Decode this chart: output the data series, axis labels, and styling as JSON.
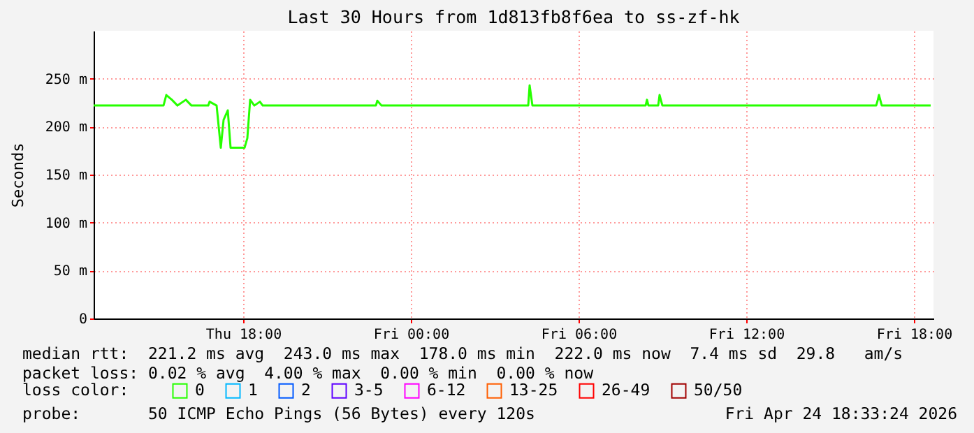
{
  "chart_data": {
    "type": "line",
    "title": "Last 30 Hours from 1d813fb8f6ea to ss-zf-hk",
    "ylabel": "Seconds",
    "x": [
      "2026-04-23T12:39",
      "2026-04-23T15:09",
      "2026-04-23T15:15",
      "2026-04-23T15:27",
      "2026-04-23T15:39",
      "2026-04-23T15:57",
      "2026-04-23T16:09",
      "2026-04-23T16:45",
      "2026-04-23T16:48",
      "2026-04-23T17:03",
      "2026-04-23T17:12",
      "2026-04-23T17:18",
      "2026-04-23T17:27",
      "2026-04-23T17:33",
      "2026-04-23T18:03",
      "2026-04-23T18:09",
      "2026-04-23T18:15",
      "2026-04-23T18:24",
      "2026-04-23T18:36",
      "2026-04-23T18:42",
      "2026-04-23T22:45",
      "2026-04-23T22:48",
      "2026-04-23T22:57",
      "2026-04-24T04:12",
      "2026-04-24T04:15",
      "2026-04-24T04:21",
      "2026-04-24T08:24",
      "2026-04-24T08:27",
      "2026-04-24T08:30",
      "2026-04-24T08:51",
      "2026-04-24T08:54",
      "2026-04-24T09:00",
      "2026-04-24T16:39",
      "2026-04-24T16:42",
      "2026-04-24T16:45",
      "2026-04-24T16:51",
      "2026-04-24T18:36"
    ],
    "series": [
      {
        "name": "0",
        "color": "#26ff00",
        "values": [
          222,
          222,
          233,
          228,
          222,
          228,
          222,
          222,
          226,
          222,
          178,
          207,
          217,
          178,
          178,
          188,
          228,
          222,
          226,
          222,
          222,
          227,
          222,
          222,
          243,
          222,
          222,
          228,
          222,
          222,
          233,
          222,
          222,
          227,
          233,
          222,
          222
        ]
      },
      {
        "name": "1",
        "color": "#00b8ff",
        "values": [
          null,
          null,
          null,
          null,
          null,
          null,
          null,
          null,
          null,
          null,
          null,
          null,
          null,
          null,
          null,
          null,
          null,
          null,
          null,
          null,
          null,
          null,
          null,
          null,
          null,
          null,
          null,
          null,
          null,
          null,
          null,
          null,
          null,
          null,
          null,
          null,
          null
        ]
      },
      {
        "name": "2",
        "color": "#0059ff",
        "values": [
          null,
          null,
          null,
          null,
          null,
          null,
          null,
          null,
          null,
          null,
          null,
          null,
          null,
          null,
          null,
          null,
          null,
          null,
          null,
          null,
          null,
          null,
          null,
          null,
          null,
          null,
          null,
          null,
          null,
          null,
          null,
          null,
          null,
          null,
          null,
          null,
          null
        ]
      },
      {
        "name": "3-5",
        "color": "#5e00ff",
        "values": [
          null,
          null,
          null,
          null,
          null,
          null,
          null,
          null,
          null,
          null,
          null,
          null,
          null,
          null,
          null,
          null,
          null,
          null,
          null,
          null,
          null,
          null,
          null,
          null,
          null,
          null,
          null,
          null,
          null,
          null,
          null,
          null,
          null,
          null,
          null,
          null,
          null
        ]
      },
      {
        "name": "6-12",
        "color": "#ff00ff",
        "values": [
          null,
          null,
          null,
          null,
          null,
          null,
          null,
          null,
          null,
          null,
          null,
          null,
          null,
          null,
          null,
          null,
          null,
          null,
          null,
          null,
          null,
          null,
          null,
          null,
          null,
          null,
          null,
          null,
          null,
          null,
          null,
          null,
          null,
          null,
          null,
          null,
          null
        ]
      },
      {
        "name": "13-25",
        "color": "#ff5e00",
        "values": [
          null,
          null,
          null,
          null,
          null,
          null,
          null,
          null,
          null,
          null,
          null,
          null,
          null,
          null,
          null,
          null,
          null,
          null,
          null,
          null,
          null,
          null,
          null,
          null,
          null,
          null,
          null,
          null,
          null,
          null,
          null,
          null,
          null,
          null,
          null,
          null,
          null
        ]
      },
      {
        "name": "26-49",
        "color": "#ff0000",
        "values": [
          null,
          null,
          null,
          null,
          null,
          null,
          null,
          null,
          null,
          null,
          null,
          null,
          null,
          null,
          null,
          null,
          null,
          null,
          null,
          null,
          null,
          null,
          null,
          null,
          null,
          null,
          null,
          null,
          null,
          null,
          null,
          null,
          null,
          null,
          null,
          null,
          null
        ]
      },
      {
        "name": "50/50",
        "color": "#a10000",
        "values": [
          null,
          null,
          null,
          null,
          null,
          null,
          null,
          null,
          null,
          null,
          null,
          null,
          null,
          null,
          null,
          null,
          null,
          null,
          null,
          null,
          null,
          null,
          null,
          null,
          null,
          null,
          null,
          null,
          null,
          null,
          null,
          null,
          null,
          null,
          null,
          null,
          null
        ]
      }
    ],
    "legend_title": "loss color:",
    "legend": "bottom",
    "xlim": [
      "2026-04-23T12:39",
      "2026-04-24T18:42"
    ],
    "xticks": [
      {
        "value": "2026-04-23T18:00",
        "label": "Thu 18:00"
      },
      {
        "value": "2026-04-24T00:00",
        "label": "Fri 00:00"
      },
      {
        "value": "2026-04-24T06:00",
        "label": "Fri 06:00"
      },
      {
        "value": "2026-04-24T12:00",
        "label": "Fri 12:00"
      },
      {
        "value": "2026-04-24T18:00",
        "label": "Fri 18:00"
      }
    ],
    "ylim": [
      0,
      300
    ],
    "yticks": [
      0,
      {
        "value": 50,
        "label": "50 m"
      },
      {
        "value": 100,
        "label": "100 m"
      },
      {
        "value": 150,
        "label": "150 m"
      },
      {
        "value": 200,
        "label": "200 m"
      },
      {
        "value": 250,
        "label": "250 m"
      }
    ],
    "grid": true,
    "marker": "none",
    "line_style": "solid",
    "annotations": [
      "median rtt:  221.2 ms avg  243.0 ms max  178.0 ms min  222.0 ms now  7.4 ms sd  29.8   am/s",
      "packet loss: 0.02 % avg  4.00 % max  0.00 % min  0.00 % now",
      "probe:       50 ICMP Echo Pings (56 Bytes) every 120s",
      "Fri Apr 24 18:33:24 2026"
    ]
  }
}
